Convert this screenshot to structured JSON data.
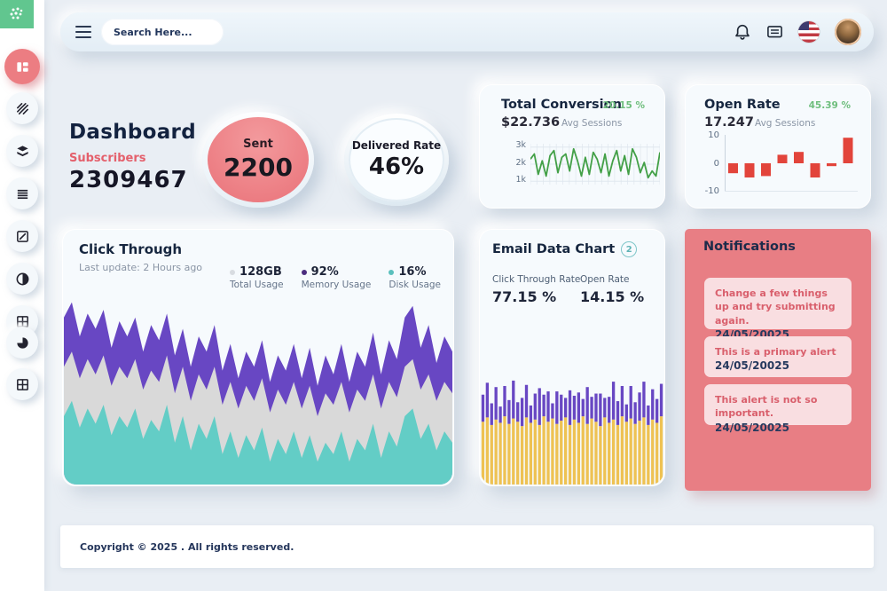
{
  "topbar": {
    "search_placeholder": "Search Here..."
  },
  "sidebar": {
    "logo_icon": "dots-grid-logo",
    "items": [
      "dashboard",
      "hatch-brush",
      "layers",
      "list-lines",
      "edit-pencil",
      "pie-half",
      "table-grid",
      "pie-quarter",
      "table-grid-2"
    ]
  },
  "header": {
    "title": "Dashboard",
    "subscribers_label": "Subscribers",
    "subscribers_value": "2309467"
  },
  "kpis": {
    "sent": {
      "label": "Sent",
      "value": "2200"
    },
    "delivered": {
      "label": "Delivered Rate",
      "value": "46%"
    }
  },
  "cards": {
    "total_conversion": {
      "title": "Total Conversion",
      "delta": "20.15 %",
      "value": "$22.736",
      "value_label": "Avg Sessions"
    },
    "open_rate": {
      "title": "Open Rate",
      "delta": "45.39 %",
      "value": "17.247",
      "value_label": "Avg Sessions"
    },
    "click_through": {
      "title": "Click Through",
      "subtitle": "Last update: 2 Hours ago",
      "legend": [
        {
          "value": "128GB",
          "label": "Total Usage",
          "color": "#d8dce1"
        },
        {
          "value": "92%",
          "label": "Memory Usage",
          "color": "#4b2d7f"
        },
        {
          "value": "16%",
          "label": "Disk Usage",
          "color": "#5bc0bd"
        }
      ]
    },
    "email_data": {
      "title": "Email Data Chart",
      "badge": "2",
      "stats": [
        {
          "label": "Click Through Rate",
          "value": "77.15 %"
        },
        {
          "label": "Open Rate",
          "value": "14.15 %"
        }
      ]
    },
    "notifications": {
      "title": "Notifications",
      "alerts": [
        {
          "message": "Change a few things up and try submitting again.",
          "date": "24/05/20025"
        },
        {
          "message": "This is a primary alert",
          "date": "24/05/20025"
        },
        {
          "message": "This alert is not so important.",
          "date": "24/05/20025"
        }
      ]
    }
  },
  "footer": {
    "text": "Copyright © 2025 . All rights reserved."
  },
  "colors": {
    "accent_red": "#e4606c",
    "accent_green": "#6fbe7d",
    "notification_bg": "#e87e84",
    "sidebar_active": "#ec7d82",
    "logo_green": "#61c68f"
  },
  "chart_data": [
    {
      "id": "total-conversion-sparkline",
      "type": "line",
      "title": "Total Conversion",
      "yticks": [
        "3k",
        "2k",
        "1k"
      ],
      "ylim": [
        0.8,
        3.2
      ],
      "grid": true,
      "color": "#43a047",
      "values": [
        2.3,
        2.6,
        1.4,
        2.2,
        1.3,
        2.5,
        2.8,
        1.5,
        2.4,
        2.6,
        1.6,
        2.9,
        2.2,
        1.3,
        2.4,
        1.4,
        2.7,
        2.3,
        1.5,
        2.6,
        1.3,
        2.2,
        2.8,
        1.6,
        2.5,
        1.4,
        2.9,
        2.4,
        1.5,
        2.1,
        1.2,
        1.6,
        1.3,
        2.7
      ]
    },
    {
      "id": "open-rate-bars",
      "type": "bar",
      "title": "Open Rate",
      "yticks": [
        "10",
        "0",
        "-10"
      ],
      "ylim": [
        -10,
        10
      ],
      "color": "#e2443b",
      "values": [
        -3.5,
        -5,
        -4.5,
        3,
        4,
        -5,
        -1,
        9
      ]
    },
    {
      "id": "click-through-area",
      "type": "area",
      "title": "Click Through",
      "stacked": true,
      "ylim": [
        0,
        100
      ],
      "legend_position": "top-right",
      "series": [
        {
          "name": "Total Usage",
          "color": "#6847c3",
          "tops_percent": [
            88,
            96,
            78,
            90,
            82,
            92,
            72,
            86,
            78,
            88,
            70,
            84,
            76,
            90,
            68,
            82,
            62,
            78,
            70,
            84,
            60,
            74,
            56,
            70,
            62,
            76,
            54,
            68,
            60,
            74,
            56,
            72,
            52,
            68,
            58,
            74,
            54,
            70,
            62,
            80,
            58,
            76,
            66,
            88,
            94,
            72,
            84,
            64,
            78,
            70
          ]
        },
        {
          "name": "Memory Usage",
          "color": "#d9d9d9",
          "tops_percent": [
            62,
            70,
            56,
            66,
            58,
            68,
            52,
            62,
            56,
            66,
            50,
            60,
            54,
            68,
            48,
            62,
            44,
            58,
            50,
            62,
            42,
            54,
            40,
            52,
            44,
            56,
            38,
            50,
            42,
            54,
            40,
            52,
            36,
            48,
            42,
            54,
            38,
            50,
            44,
            58,
            40,
            54,
            46,
            62,
            66,
            50,
            58,
            44,
            54,
            48
          ]
        },
        {
          "name": "Disk Usage",
          "color": "#63cdc6",
          "tops_percent": [
            36,
            44,
            30,
            40,
            32,
            42,
            26,
            36,
            30,
            40,
            24,
            34,
            28,
            42,
            22,
            36,
            18,
            32,
            24,
            36,
            16,
            28,
            14,
            26,
            18,
            30,
            12,
            24,
            16,
            28,
            14,
            26,
            12,
            22,
            16,
            28,
            12,
            24,
            18,
            32,
            14,
            28,
            20,
            36,
            40,
            24,
            32,
            18,
            28,
            22
          ]
        }
      ]
    },
    {
      "id": "email-data-bars",
      "type": "bar",
      "stacked": true,
      "title": "Email Data Chart",
      "ylim": [
        0,
        100
      ],
      "series": [
        {
          "name": "Open Rate",
          "color": "#eec253",
          "values_percent": [
            58,
            62,
            55,
            60,
            57,
            63,
            56,
            61,
            58,
            54,
            62,
            57,
            60,
            55,
            63,
            58,
            61,
            56,
            59,
            62,
            55,
            60,
            57,
            63,
            56,
            61,
            58,
            54,
            62,
            57,
            60,
            55,
            63,
            58,
            61,
            56,
            59,
            62,
            55,
            60,
            57,
            63
          ]
        },
        {
          "name": "Click Through Rate",
          "color": "#6847c3",
          "values_percent": [
            25,
            32,
            20,
            30,
            15,
            28,
            22,
            35,
            18,
            26,
            30,
            16,
            24,
            34,
            20,
            28,
            14,
            30,
            24,
            18,
            32,
            22,
            28,
            16,
            34,
            20,
            26,
            30,
            18,
            24,
            35,
            22,
            28,
            16,
            30,
            20,
            26,
            33,
            18,
            28,
            22,
            30
          ]
        }
      ]
    }
  ]
}
